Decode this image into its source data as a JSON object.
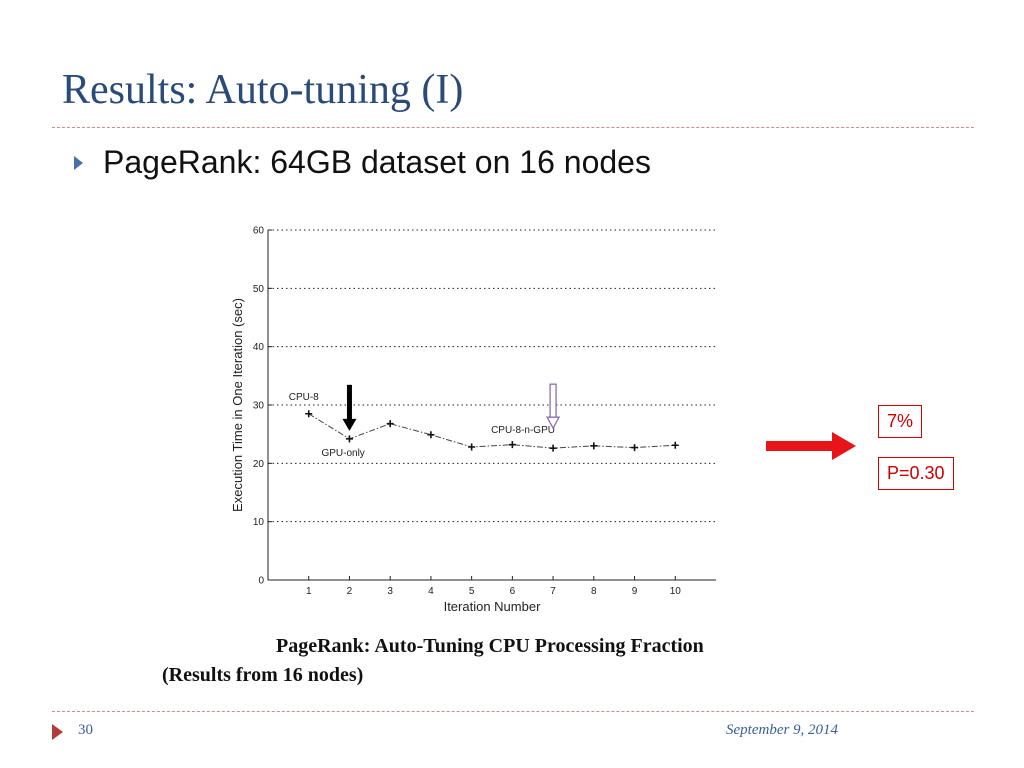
{
  "slide": {
    "title": "Results: Auto-tuning (I)",
    "bullet": "PageRank: 64GB dataset on 16 nodes",
    "caption_line1": "PageRank:  Auto-Tuning CPU Processing Fraction",
    "caption_line2": "(Results from 16 nodes)",
    "improvement_label": "7%",
    "p_value_label": "P=0.30",
    "page_number": "30",
    "date": "September 9, 2014"
  },
  "colors": {
    "title": "#2a4a78",
    "accent_red": "#e8141a",
    "marker_outline_purple": "#8a6fb0",
    "footer_text": "#3a5f9a"
  },
  "chart_data": {
    "type": "line",
    "xlabel": "Iteration Number",
    "ylabel": "Execution Time in One Iteration (sec)",
    "x": [
      1,
      2,
      3,
      4,
      5,
      6,
      7,
      8,
      9,
      10
    ],
    "xticks": [
      1,
      2,
      3,
      4,
      5,
      6,
      7,
      8,
      9,
      10
    ],
    "xlim": [
      0,
      11
    ],
    "ylim": [
      0,
      60
    ],
    "yticks": [
      0,
      10,
      20,
      30,
      40,
      50,
      60
    ],
    "grid": "horizontal dotted",
    "series": [
      {
        "values": [
          28.5,
          24.2,
          26.8,
          24.9,
          22.8,
          23.2,
          22.6,
          23.0,
          22.7,
          23.1
        ]
      }
    ],
    "annotations": [
      {
        "text": "CPU-8",
        "x": 1,
        "y": 28.5
      },
      {
        "text": "GPU-only",
        "x": 2,
        "y": 24.2
      },
      {
        "text": "CPU-8-n-GPU",
        "x": 7,
        "y": 22.6
      }
    ],
    "arrows": [
      {
        "x": 2,
        "y": 24.2,
        "style": "black"
      },
      {
        "x": 7,
        "y": 22.6,
        "style": "purple-outline"
      }
    ]
  }
}
